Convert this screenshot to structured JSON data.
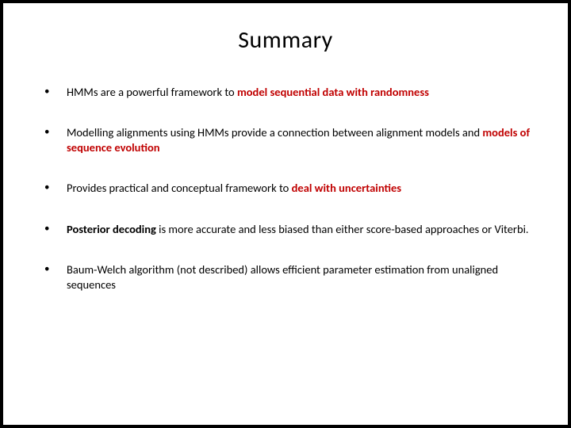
{
  "slide": {
    "title": "Summary",
    "title_fontsize": 30,
    "title_color": "#000000",
    "background_color": "#ffffff",
    "outer_background": "#000000",
    "bullet_fontsize": 14.5,
    "bullet_color": "#000000",
    "highlight_color": "#c00000",
    "bullets": [
      {
        "pre": "HMMs are a powerful framework to ",
        "hl": "model sequential data with randomness",
        "post": ""
      },
      {
        "pre": "Modelling alignments using HMMs provide a connection between alignment models and ",
        "hl": "models of sequence evolution",
        "post": ""
      },
      {
        "pre": "Provides practical and conceptual framework to ",
        "hl": "deal with uncertainties",
        "post": ""
      },
      {
        "bold": "Posterior decoding",
        "post": " is more accurate and less biased than either score-based approaches or Viterbi."
      },
      {
        "pre": "Baum-Welch algorithm (not described) allows efficient parameter estimation from unaligned sequences",
        "hl": "",
        "post": ""
      }
    ]
  }
}
